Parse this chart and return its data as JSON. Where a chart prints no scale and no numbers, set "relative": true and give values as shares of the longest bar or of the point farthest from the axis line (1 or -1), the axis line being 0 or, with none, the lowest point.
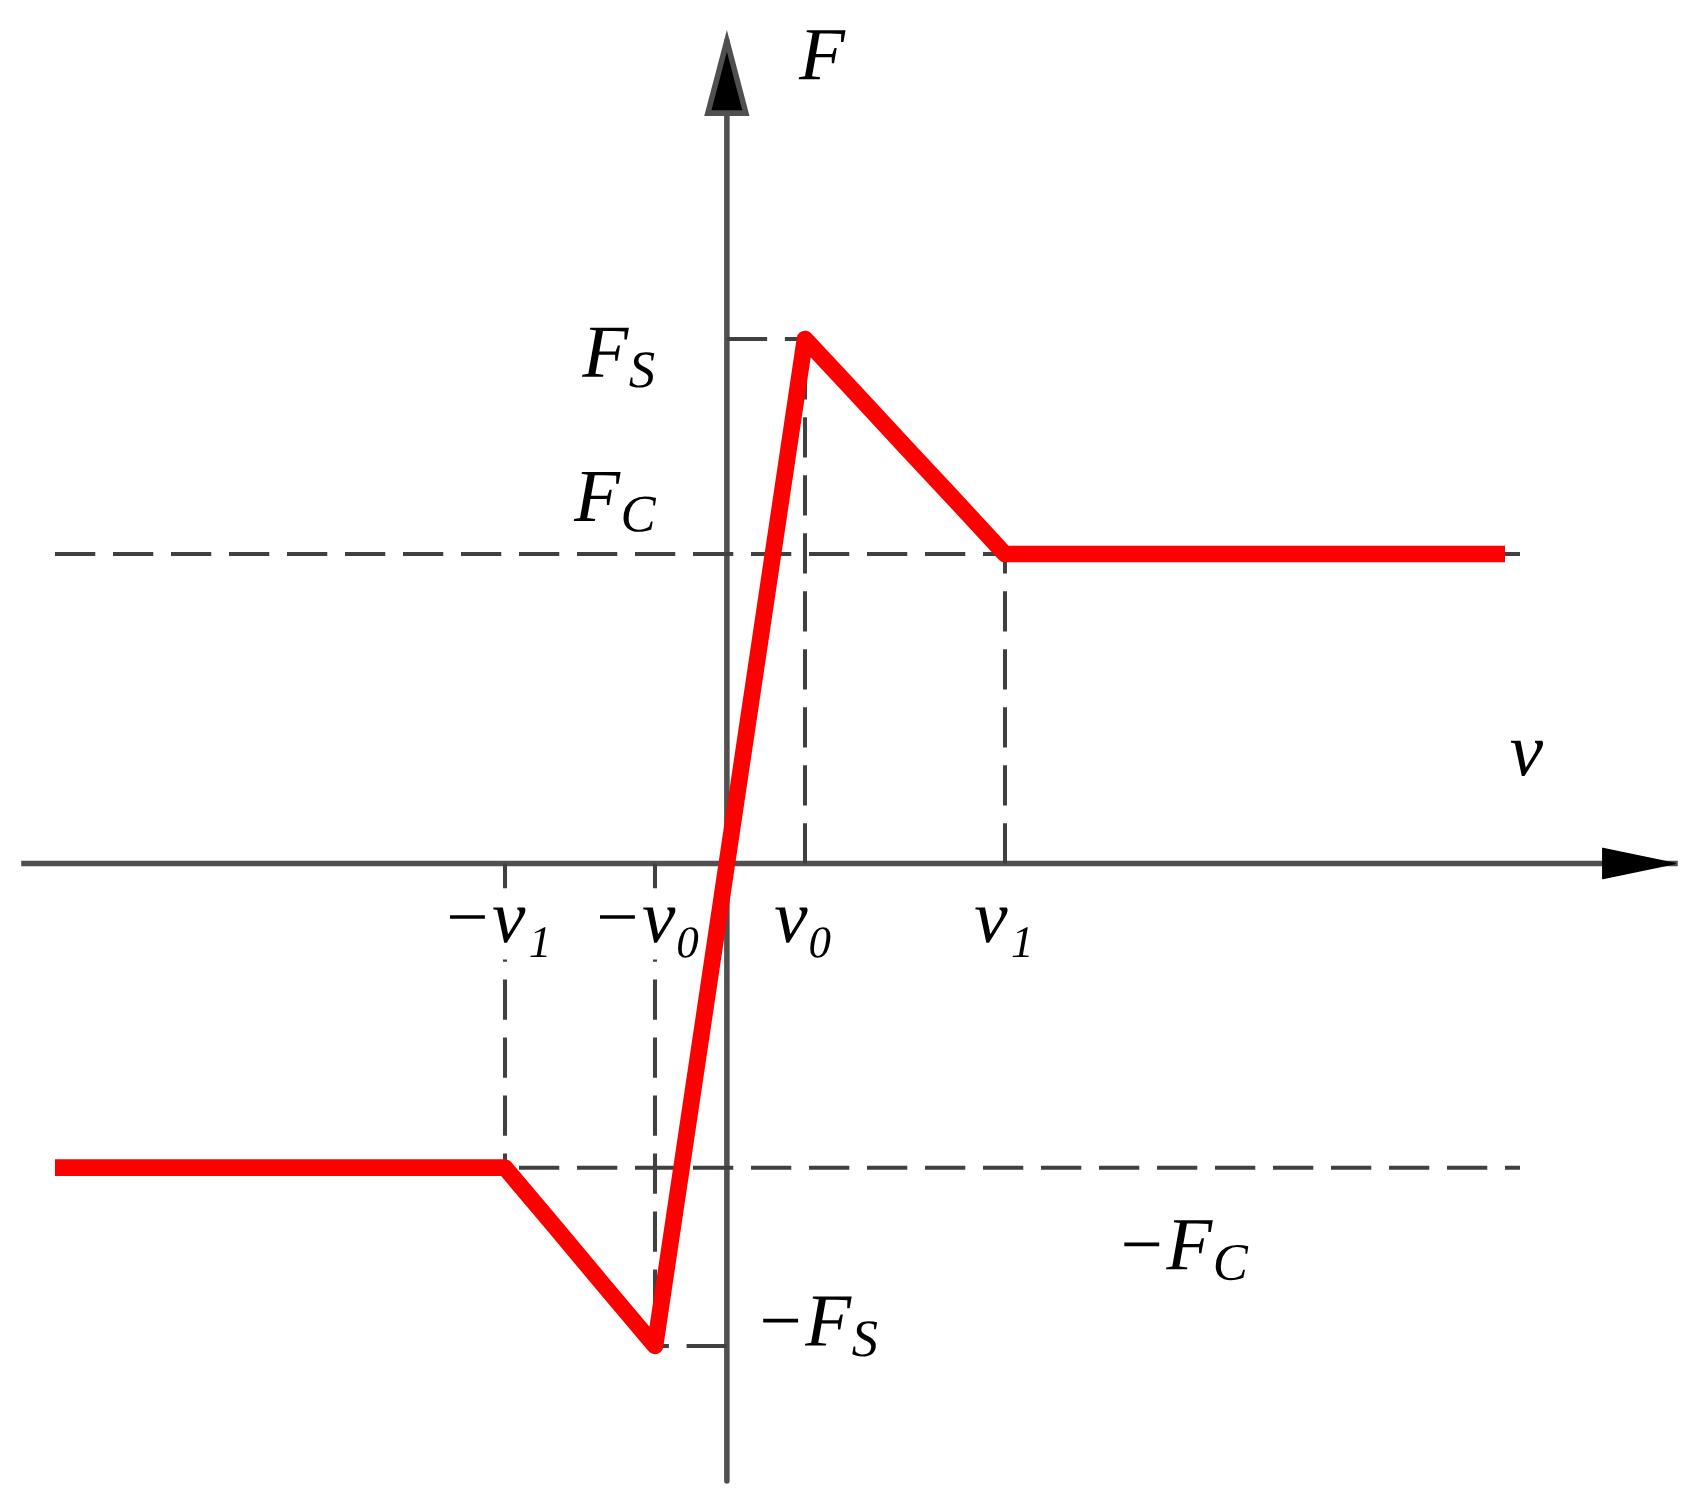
{
  "chart_data": {
    "type": "line",
    "relative": true,
    "xlabel": "v",
    "ylabel": "F",
    "categories": [
      null,
      null,
      null,
      null,
      null,
      null,
      null,
      null,
      null,
      "−v₁",
      null,
      null,
      "−v₀",
      null,
      null,
      "v₀",
      null,
      null,
      null,
      "v₁",
      null,
      null,
      null,
      null,
      null,
      null,
      null,
      null,
      null,
      null
    ],
    "values": [
      -0.58,
      -0.58,
      -0.58,
      -0.58,
      -0.58,
      -0.58,
      -0.58,
      -0.58,
      -0.58,
      -0.58,
      -0.693,
      -0.807,
      -0.92,
      -0.28,
      0.36,
      1,
      0.898,
      0.795,
      0.693,
      0.59,
      0.59,
      0.59,
      0.59,
      0.59,
      0.59,
      0.59,
      0.59,
      0.59,
      0.59,
      0.59
    ],
    "color": "#ff0000",
    "ref_lines": [
      {
        "axis": "x",
        "value": "−v₁",
        "color": "#404040",
        "line_style": "dashed"
      },
      {
        "axis": "x",
        "value": "−v₀",
        "color": "#404040",
        "line_style": "dashed"
      },
      {
        "axis": "x",
        "value": "v₀",
        "color": "#404040",
        "line_style": "dashed"
      },
      {
        "axis": "x",
        "value": "v₁",
        "color": "#404040",
        "line_style": "dashed"
      },
      {
        "axis": "y",
        "value": 1,
        "label": "F$_{S}$",
        "color": "#404040",
        "line_style": "dashed"
      },
      {
        "axis": "y",
        "value": 0.59,
        "label": "F$_{C}$",
        "color": "#404040",
        "line_style": "dashed"
      },
      {
        "axis": "y",
        "value": -0.58,
        "label": "−F$_{C}$",
        "color": "#404040",
        "line_style": "dashed"
      },
      {
        "axis": "y",
        "value": -0.92,
        "label": "−F$_{S}$",
        "color": "#404040",
        "line_style": "dashed"
      }
    ]
  }
}
